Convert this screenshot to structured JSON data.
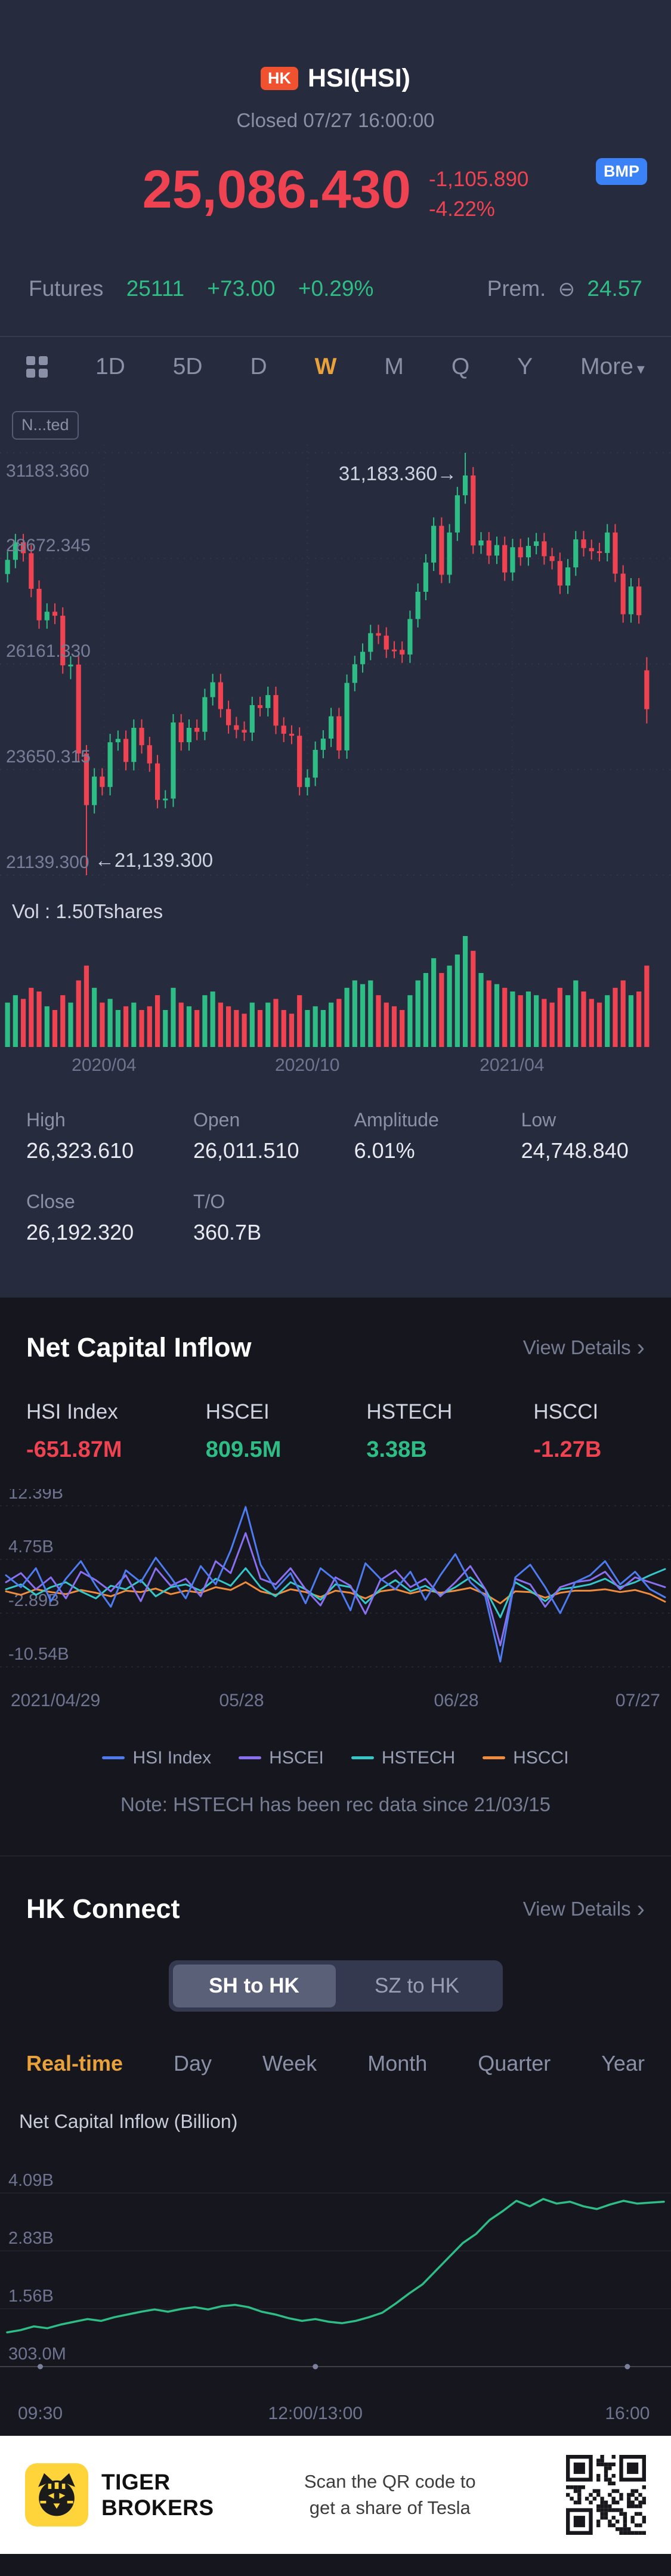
{
  "palette": {
    "accent_red": "#f04352",
    "accent_green": "#2ebd85",
    "accent_yellow": "#e9a23b",
    "badge_blue": "#3b82f6",
    "hk_badge": "#f0512f"
  },
  "header": {
    "market_badge": "HK",
    "title": "HSI(HSI)",
    "status_text": "Closed 07/27 16:00:00",
    "price": "25,086.430",
    "change": "-1,105.890",
    "change_pct": "-4.22%",
    "quote_badge": "BMP",
    "futures_label": "Futures",
    "futures_value": "25111",
    "futures_change": "+73.00",
    "futures_change_pct": "+0.29%",
    "premium_label": "Prem.",
    "premium_icon": "⊖",
    "premium_value": "24.57"
  },
  "period_tabs": {
    "items": [
      "1D",
      "5D",
      "D",
      "W",
      "M",
      "Q",
      "Y"
    ],
    "active": "W",
    "more_label": "More",
    "more_caret": "▾"
  },
  "main_chart": {
    "adjust_chip": "N...ted",
    "vol_label": "Vol : 1.50Tshares"
  },
  "stats": {
    "cells": [
      {
        "label": "High",
        "value": "26,323.610"
      },
      {
        "label": "Open",
        "value": "26,011.510"
      },
      {
        "label": "Amplitude",
        "value": "6.01%"
      },
      {
        "label": "Low",
        "value": "24,748.840"
      },
      {
        "label": "Close",
        "value": "26,192.320"
      },
      {
        "label": "T/O",
        "value": "360.7B"
      }
    ]
  },
  "flow": {
    "title": "Net Capital Inflow",
    "view_details": "View Details",
    "chevron": "›",
    "indices": [
      {
        "name": "HSI Index",
        "value": "-651.87M"
      },
      {
        "name": "HSCEI",
        "value": "809.5M"
      },
      {
        "name": "HSTECH",
        "value": "3.38B"
      },
      {
        "name": "HSCCI",
        "value": "-1.27B"
      }
    ],
    "note": "Note: HSTECH has been rec data since 21/03/15"
  },
  "connect": {
    "title": "HK Connect",
    "view_details": "View Details",
    "chevron": "›",
    "segments": [
      "SH to HK",
      "SZ to HK"
    ],
    "active_segment": "SH to HK",
    "tabs": [
      "Real-time",
      "Day",
      "Week",
      "Month",
      "Quarter",
      "Year"
    ],
    "active_tab": "Real-time",
    "y_axis_label": "Net Capital Inflow (Billion)"
  },
  "footer": {
    "brand_line1": "TIGER",
    "brand_line2": "BROKERS",
    "promo_line1": "Scan the QR code to",
    "promo_line2": "get a share of Tesla"
  },
  "chart_data": [
    {
      "type": "candlestick",
      "period": "W",
      "title": "HSI weekly price",
      "y_ticks": [
        31183.36,
        28672.345,
        26161.33,
        23650.315,
        21139.3
      ],
      "y_tick_labels": [
        "31183.360",
        "28672.345",
        "26161.330",
        "23650.315",
        "21139.300"
      ],
      "x_tick_labels": [
        "2020/04",
        "2020/10",
        "2021/04"
      ],
      "x_tick_positions": [
        0.155,
        0.458,
        0.763
      ],
      "high_label": {
        "text": "31,183.360→",
        "index": 58
      },
      "low_label": {
        "text": "←21,139.300",
        "index": 10
      },
      "candles": [
        [
          28300,
          28838,
          28100,
          28638
        ],
        [
          28638,
          29256,
          28438,
          29056
        ],
        [
          29056,
          29256,
          28595,
          28795
        ],
        [
          28795,
          28995,
          27749,
          27949
        ],
        [
          27949,
          28149,
          27000,
          27200
        ],
        [
          27200,
          27604,
          27000,
          27404
        ],
        [
          27404,
          27604,
          27109,
          27309
        ],
        [
          27309,
          27509,
          25930,
          26130
        ],
        [
          26130,
          26346,
          25800,
          26146
        ],
        [
          26146,
          26346,
          23833,
          24033
        ],
        [
          24033,
          24233,
          21139,
          22805
        ],
        [
          22805,
          23684,
          22605,
          23484
        ],
        [
          23484,
          23684,
          23036,
          23236
        ],
        [
          23236,
          24500,
          23036,
          24300
        ],
        [
          24300,
          24580,
          24100,
          24380
        ],
        [
          24380,
          24580,
          23631,
          23831
        ],
        [
          23831,
          24844,
          23631,
          24644
        ],
        [
          24644,
          24844,
          24030,
          24230
        ],
        [
          24230,
          24430,
          23597,
          23797
        ],
        [
          23797,
          23997,
          22730,
          22930
        ],
        [
          22930,
          23161,
          22730,
          22961
        ],
        [
          22961,
          24970,
          22761,
          24770
        ],
        [
          24770,
          24970,
          24101,
          24301
        ],
        [
          24301,
          24843,
          24101,
          24643
        ],
        [
          24643,
          24843,
          24349,
          24549
        ],
        [
          24549,
          25573,
          24349,
          25373
        ],
        [
          25373,
          25927,
          25173,
          25727
        ],
        [
          25727,
          25927,
          24889,
          25089
        ],
        [
          25089,
          25289,
          24505,
          24705
        ],
        [
          24705,
          24905,
          24395,
          24595
        ],
        [
          24595,
          24795,
          24331,
          24531
        ],
        [
          24531,
          25383,
          24331,
          25183
        ],
        [
          25183,
          25383,
          24914,
          25114
        ],
        [
          25114,
          25622,
          24914,
          25422
        ],
        [
          25422,
          25622,
          24495,
          24695
        ],
        [
          24695,
          24895,
          24303,
          24503
        ],
        [
          24503,
          24703,
          24255,
          24455
        ],
        [
          24455,
          24655,
          23035,
          23235
        ],
        [
          23235,
          23659,
          23035,
          23459
        ],
        [
          23459,
          24319,
          23259,
          24119
        ],
        [
          24119,
          24586,
          23919,
          24386
        ],
        [
          24386,
          25118,
          24186,
          24918
        ],
        [
          24918,
          25118,
          23907,
          24107
        ],
        [
          24107,
          25912,
          23907,
          25712
        ],
        [
          25712,
          26356,
          25512,
          26156
        ],
        [
          26156,
          26651,
          25956,
          26451
        ],
        [
          26451,
          27094,
          26251,
          26894
        ],
        [
          26894,
          27094,
          26635,
          26835
        ],
        [
          26835,
          27035,
          26305,
          26505
        ],
        [
          26505,
          26705,
          26298,
          26498
        ],
        [
          26498,
          26698,
          26186,
          26386
        ],
        [
          26386,
          27431,
          26186,
          27231
        ],
        [
          27231,
          28078,
          27031,
          27878
        ],
        [
          27878,
          28773,
          27678,
          28573
        ],
        [
          28573,
          29647,
          28373,
          29447
        ],
        [
          29447,
          29647,
          28083,
          28283
        ],
        [
          28283,
          29488,
          28083,
          29288
        ],
        [
          29288,
          30373,
          29088,
          30173
        ],
        [
          30173,
          31183,
          29973,
          30644
        ],
        [
          30644,
          30844,
          28780,
          28980
        ],
        [
          28980,
          29298,
          28780,
          29098
        ],
        [
          29098,
          29298,
          28539,
          28739
        ],
        [
          28739,
          29190,
          28539,
          28990
        ],
        [
          28990,
          29190,
          28138,
          28338
        ],
        [
          28338,
          29138,
          28138,
          28938
        ],
        [
          28938,
          29138,
          28498,
          28698
        ],
        [
          28698,
          29169,
          28498,
          28969
        ],
        [
          28969,
          29278,
          28769,
          29078
        ],
        [
          29078,
          29278,
          28524,
          28724
        ],
        [
          28724,
          28924,
          28410,
          28610
        ],
        [
          28610,
          28810,
          27827,
          28027
        ],
        [
          28027,
          28658,
          27827,
          28458
        ],
        [
          28458,
          29324,
          28258,
          29124
        ],
        [
          29124,
          29324,
          28718,
          28918
        ],
        [
          28918,
          29118,
          28642,
          28842
        ],
        [
          28842,
          29042,
          28601,
          28801
        ],
        [
          28801,
          29488,
          28601,
          29288
        ],
        [
          29288,
          29488,
          28110,
          28310
        ],
        [
          28310,
          28510,
          27144,
          27344
        ],
        [
          27344,
          28204,
          27144,
          28004
        ],
        [
          28004,
          28204,
          27121,
          27321
        ],
        [
          26011,
          26323,
          24748,
          25086
        ]
      ],
      "volumes": [
        0.6,
        0.7,
        0.65,
        0.8,
        0.75,
        0.55,
        0.5,
        0.7,
        0.6,
        0.9,
        1.1,
        0.8,
        0.6,
        0.65,
        0.5,
        0.55,
        0.6,
        0.5,
        0.55,
        0.7,
        0.5,
        0.8,
        0.6,
        0.55,
        0.5,
        0.7,
        0.75,
        0.6,
        0.55,
        0.5,
        0.45,
        0.6,
        0.5,
        0.6,
        0.65,
        0.5,
        0.45,
        0.7,
        0.5,
        0.55,
        0.5,
        0.6,
        0.65,
        0.8,
        0.9,
        0.85,
        0.9,
        0.7,
        0.6,
        0.55,
        0.5,
        0.7,
        0.9,
        1.0,
        1.2,
        1.0,
        1.1,
        1.25,
        1.5,
        1.3,
        1.0,
        0.9,
        0.85,
        0.8,
        0.75,
        0.7,
        0.75,
        0.7,
        0.65,
        0.6,
        0.8,
        0.7,
        0.9,
        0.75,
        0.65,
        0.6,
        0.7,
        0.8,
        0.9,
        0.7,
        0.75,
        1.1
      ]
    },
    {
      "type": "line",
      "title": "Net Capital Inflow",
      "y_ticks": [
        12.39,
        4.75,
        -2.89,
        -10.54
      ],
      "y_tick_labels": [
        "12.39B",
        "4.75B",
        "-2.89B",
        "-10.54B"
      ],
      "x_labels": [
        "2021/04/29",
        "05/28",
        "06/28",
        "07/27"
      ],
      "series": [
        {
          "name": "HSI Index",
          "color": "#4e7cf0",
          "values": [
            2.5,
            0.8,
            3.5,
            -1.2,
            2.0,
            4.5,
            1.0,
            -2.0,
            3.2,
            1.5,
            5.0,
            2.2,
            -0.8,
            3.8,
            1.2,
            6.0,
            12.2,
            4.0,
            0.5,
            2.8,
            -1.5,
            3.5,
            1.8,
            -2.5,
            4.2,
            2.0,
            0.5,
            3.0,
            -1.0,
            2.5,
            5.5,
            1.5,
            -0.5,
            -9.8,
            2.2,
            4.0,
            0.8,
            -2.9,
            1.5,
            2.5,
            4.5,
            1.2,
            3.0,
            0.5,
            -0.65
          ]
        },
        {
          "name": "HSCEI",
          "color": "#8a70f0",
          "values": [
            1.5,
            2.8,
            0.5,
            2.2,
            -0.8,
            3.0,
            1.8,
            0.2,
            2.5,
            -1.2,
            3.5,
            1.0,
            2.0,
            -0.5,
            4.5,
            2.8,
            8.5,
            2.0,
            1.2,
            3.5,
            0.5,
            -1.8,
            2.2,
            1.0,
            -3.0,
            1.8,
            3.2,
            0.8,
            2.0,
            -0.5,
            1.5,
            3.8,
            0.5,
            -7.5,
            2.0,
            1.2,
            -2.0,
            0.8,
            1.5,
            1.8,
            3.0,
            0.5,
            2.2,
            1.5,
            0.81
          ]
        },
        {
          "name": "HSTECH",
          "color": "#34c8c8",
          "values": [
            0.5,
            1.2,
            -0.3,
            0.8,
            1.5,
            0.2,
            -0.8,
            1.0,
            0.5,
            1.8,
            -0.5,
            0.8,
            1.2,
            0.3,
            2.0,
            1.0,
            3.5,
            0.8,
            -0.5,
            1.5,
            0.5,
            -1.0,
            1.2,
            0.8,
            -1.5,
            0.5,
            1.8,
            0.2,
            1.0,
            -0.3,
            0.8,
            2.2,
            0.5,
            -3.5,
            1.5,
            0.3,
            -1.2,
            0.5,
            0.8,
            1.2,
            2.0,
            0.8,
            1.5,
            2.5,
            3.38
          ]
        },
        {
          "name": "HSCCI",
          "color": "#f08c3c",
          "values": [
            0.2,
            -0.3,
            0.5,
            0.1,
            -0.2,
            0.4,
            0.0,
            -0.5,
            0.3,
            0.1,
            0.6,
            -0.2,
            0.3,
            0.0,
            0.8,
            0.4,
            1.5,
            0.2,
            -0.3,
            0.5,
            0.1,
            -0.6,
            0.3,
            0.0,
            -0.8,
            0.2,
            0.5,
            -0.1,
            0.4,
            0.0,
            0.3,
            0.7,
            -0.2,
            -1.5,
            0.2,
            0.1,
            -0.7,
            0.0,
            0.3,
            0.3,
            0.5,
            0.1,
            0.4,
            -0.2,
            -1.27
          ]
        }
      ]
    },
    {
      "type": "line",
      "title": "HK Connect SH to HK net capital inflow",
      "unit": "Billion",
      "color": "#2ebd85",
      "y_ticks": [
        4.09,
        2.83,
        1.56,
        0.303
      ],
      "y_tick_labels": [
        "4.09B",
        "2.83B",
        "1.56B",
        "303.0M"
      ],
      "x_labels": [
        "09:30",
        "12:00/13:00",
        "16:00"
      ],
      "x_dot_positions": [
        0.06,
        0.47,
        0.935
      ],
      "values": [
        1.05,
        1.1,
        1.18,
        1.14,
        1.22,
        1.28,
        1.34,
        1.3,
        1.38,
        1.44,
        1.5,
        1.55,
        1.5,
        1.56,
        1.6,
        1.55,
        1.62,
        1.65,
        1.6,
        1.5,
        1.44,
        1.36,
        1.3,
        1.34,
        1.28,
        1.25,
        1.3,
        1.38,
        1.48,
        1.68,
        1.9,
        2.1,
        2.4,
        2.7,
        3.0,
        3.2,
        3.5,
        3.7,
        3.92,
        3.8,
        3.96,
        3.86,
        3.9,
        3.8,
        3.74,
        3.84,
        3.92,
        3.86,
        3.88,
        3.9
      ]
    }
  ]
}
